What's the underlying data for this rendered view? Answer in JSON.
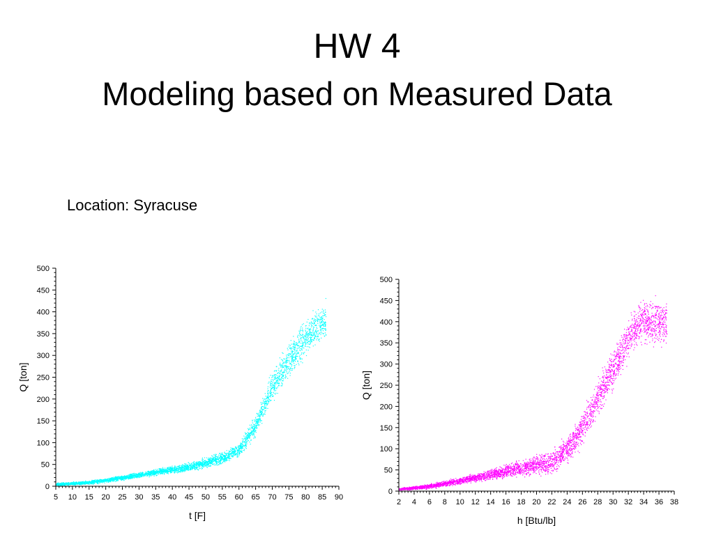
{
  "slide": {
    "title": "HW 4",
    "subtitle": "Modeling based on Measured Data",
    "location": "Location: Syracuse"
  },
  "chart_data": [
    {
      "type": "scatter",
      "xlabel": "t [F]",
      "ylabel": "Q [ton]",
      "xlim": [
        5,
        90
      ],
      "ylim": [
        0,
        500
      ],
      "xticks": [
        5,
        10,
        15,
        20,
        25,
        30,
        35,
        40,
        45,
        50,
        55,
        60,
        65,
        70,
        75,
        80,
        85,
        90
      ],
      "yticks": [
        0,
        50,
        100,
        150,
        200,
        250,
        300,
        350,
        400,
        450,
        500
      ],
      "color": "#00ffff",
      "grid": false,
      "trend": [
        [
          5,
          5
        ],
        [
          15,
          9
        ],
        [
          25,
          20
        ],
        [
          35,
          33
        ],
        [
          45,
          45
        ],
        [
          55,
          65
        ],
        [
          60,
          85
        ],
        [
          65,
          140
        ],
        [
          70,
          230
        ],
        [
          75,
          290
        ],
        [
          80,
          340
        ],
        [
          85,
          380
        ]
      ],
      "x_range": [
        5,
        86
      ],
      "spread": [
        [
          5,
          4
        ],
        [
          40,
          10
        ],
        [
          60,
          20
        ],
        [
          70,
          45
        ],
        [
          80,
          55
        ],
        [
          86,
          60
        ]
      ],
      "points": 4000
    },
    {
      "type": "scatter",
      "xlabel": "h [Btu/lb]",
      "ylabel": "Q [ton]",
      "xlim": [
        2,
        38
      ],
      "ylim": [
        0,
        500
      ],
      "xticks": [
        2,
        4,
        6,
        8,
        10,
        12,
        14,
        16,
        18,
        20,
        22,
        24,
        26,
        28,
        30,
        32,
        34,
        36,
        38
      ],
      "yticks": [
        0,
        50,
        100,
        150,
        200,
        250,
        300,
        350,
        400,
        450,
        500
      ],
      "color": "#ff00ff",
      "grid": false,
      "trend": [
        [
          2,
          5
        ],
        [
          6,
          12
        ],
        [
          10,
          25
        ],
        [
          14,
          40
        ],
        [
          18,
          55
        ],
        [
          22,
          70
        ],
        [
          24,
          100
        ],
        [
          26,
          150
        ],
        [
          28,
          220
        ],
        [
          30,
          290
        ],
        [
          32,
          360
        ],
        [
          34,
          400
        ]
      ],
      "x_range": [
        2,
        37
      ],
      "spread": [
        [
          2,
          4
        ],
        [
          12,
          12
        ],
        [
          20,
          30
        ],
        [
          26,
          50
        ],
        [
          30,
          60
        ],
        [
          37,
          70
        ]
      ],
      "points": 4000
    }
  ]
}
